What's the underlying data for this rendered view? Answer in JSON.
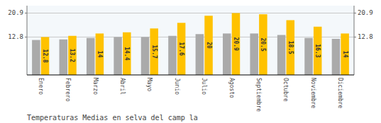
{
  "chart_data": {
    "type": "bar",
    "title": "Temperaturas Medias en selva del camp la",
    "categories": [
      "Enero",
      "Febrero",
      "Marzo",
      "Abril",
      "Mayo",
      "Junio",
      "Julio",
      "Agosto",
      "Septiembre",
      "Octubre",
      "Noviembre",
      "Diciembre"
    ],
    "series": [
      {
        "color": "#AAAAAA",
        "values": [
          11.8,
          12.0,
          12.5,
          12.8,
          12.8,
          13.2,
          13.8,
          14.0,
          14.0,
          13.5,
          12.5,
          12.2
        ]
      },
      {
        "color": "#FFC200",
        "data_labels": true,
        "values": [
          12.8,
          13.2,
          14.0,
          14.4,
          15.7,
          17.6,
          20.0,
          20.9,
          20.5,
          18.5,
          16.3,
          14.0
        ]
      }
    ],
    "ylim": [
      0,
      23.408
    ],
    "yticks": [
      12.8,
      20.9
    ],
    "y2lim": [
      0,
      23.408
    ],
    "y2ticks": [
      12.8,
      20.9
    ],
    "grid": true
  }
}
